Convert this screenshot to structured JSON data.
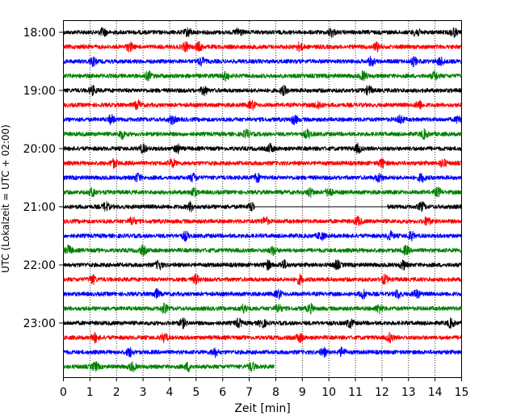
{
  "chart_data": {
    "type": "line",
    "xlabel": "Zeit  [min]",
    "ylabel": "UTC (Lokalzeit = UTC + 02:00)",
    "xlim": [
      0,
      15
    ],
    "x_ticks": [
      0,
      1,
      2,
      3,
      4,
      5,
      6,
      7,
      8,
      9,
      10,
      11,
      12,
      13,
      14,
      15
    ],
    "x_tick_labels": [
      "0",
      "1",
      "2",
      "3",
      "4",
      "5",
      "6",
      "7",
      "8",
      "9",
      "10",
      "11",
      "12",
      "13",
      "14",
      "15"
    ],
    "y_tick_labels": [
      "18:00",
      "19:00",
      "20:00",
      "21:00",
      "22:00",
      "23:00"
    ],
    "y_tick_rows": [
      0,
      4,
      8,
      12,
      16,
      20
    ],
    "x_grid": "dotted-vertical",
    "trace_colors": [
      "#000000",
      "#ff0000",
      "#0000ff",
      "#008000"
    ],
    "rows": [
      {
        "start_utc": "18:00",
        "color": "#000000",
        "x_start": 0,
        "x_end": 15,
        "bursts": [
          1.5,
          4.7,
          6.6,
          10.1,
          13.3,
          14.7
        ]
      },
      {
        "start_utc": "18:15",
        "color": "#ff0000",
        "x_start": 0,
        "x_end": 15,
        "bursts": [
          2.5,
          4.6,
          5.1,
          8.9,
          11.8
        ]
      },
      {
        "start_utc": "18:30",
        "color": "#0000ff",
        "x_start": 0,
        "x_end": 15,
        "bursts": [
          1.1,
          5.2,
          11.6,
          13.2,
          14.2
        ]
      },
      {
        "start_utc": "18:45",
        "color": "#008000",
        "x_start": 0,
        "x_end": 15,
        "bursts": [
          3.2,
          6.1,
          11.3,
          14.0
        ]
      },
      {
        "start_utc": "19:00",
        "color": "#000000",
        "x_start": 0,
        "x_end": 15,
        "bursts": [
          1.1,
          5.3,
          8.3,
          11.5
        ]
      },
      {
        "start_utc": "19:15",
        "color": "#ff0000",
        "x_start": 0,
        "x_end": 15,
        "bursts": [
          2.8,
          7.1,
          9.6,
          13.4
        ]
      },
      {
        "start_utc": "19:30",
        "color": "#0000ff",
        "x_start": 0,
        "x_end": 15,
        "bursts": [
          1.8,
          4.1,
          8.7,
          12.7,
          14.9
        ]
      },
      {
        "start_utc": "19:45",
        "color": "#008000",
        "x_start": 0,
        "x_end": 15,
        "bursts": [
          2.2,
          6.9,
          9.2,
          13.6
        ]
      },
      {
        "start_utc": "20:00",
        "color": "#000000",
        "x_start": 0,
        "x_end": 15,
        "bursts": [
          3.0,
          4.3,
          7.8,
          11.1
        ]
      },
      {
        "start_utc": "20:15",
        "color": "#ff0000",
        "x_start": 0,
        "x_end": 15,
        "bursts": [
          1.9,
          4.1,
          12.0,
          14.3
        ]
      },
      {
        "start_utc": "20:30",
        "color": "#0000ff",
        "x_start": 0,
        "x_end": 15,
        "bursts": [
          2.8,
          4.9,
          7.3,
          11.9,
          13.5
        ]
      },
      {
        "start_utc": "20:45",
        "color": "#008000",
        "x_start": 0,
        "x_end": 15,
        "bursts": [
          1.1,
          4.9,
          9.3,
          10.0,
          14.1
        ]
      },
      {
        "start_utc": "21:00",
        "color": "#000000",
        "x_start": 0,
        "x_end": 15,
        "gap": [
          7.2,
          12.2
        ],
        "bursts": [
          1.6,
          4.8,
          7.1,
          13.5
        ]
      },
      {
        "start_utc": "21:15",
        "color": "#ff0000",
        "x_start": 0,
        "x_end": 15,
        "bursts": [
          2.6,
          7.6,
          11.1,
          13.7
        ]
      },
      {
        "start_utc": "21:30",
        "color": "#0000ff",
        "x_start": 0,
        "x_end": 15,
        "bursts": [
          4.6,
          9.7,
          12.3,
          13.1
        ]
      },
      {
        "start_utc": "21:45",
        "color": "#008000",
        "x_start": 0,
        "x_end": 15,
        "bursts": [
          0.2,
          3.0,
          7.9,
          12.9
        ]
      },
      {
        "start_utc": "22:00",
        "color": "#000000",
        "x_start": 0,
        "x_end": 15,
        "bursts": [
          3.6,
          7.7,
          8.3,
          10.3,
          12.8
        ]
      },
      {
        "start_utc": "22:15",
        "color": "#ff0000",
        "x_start": 0,
        "x_end": 15,
        "bursts": [
          1.1,
          5.0,
          8.9,
          12.1
        ]
      },
      {
        "start_utc": "22:30",
        "color": "#0000ff",
        "x_start": 0,
        "x_end": 15,
        "bursts": [
          3.5,
          8.1,
          11.3,
          12.6,
          13.3
        ]
      },
      {
        "start_utc": "22:45",
        "color": "#008000",
        "x_start": 0,
        "x_end": 15,
        "bursts": [
          3.8,
          6.8,
          8.1,
          9.3,
          11.9
        ]
      },
      {
        "start_utc": "23:00",
        "color": "#000000",
        "x_start": 0,
        "x_end": 15,
        "bursts": [
          4.5,
          6.6,
          7.5,
          10.8,
          14.6
        ]
      },
      {
        "start_utc": "23:15",
        "color": "#ff0000",
        "x_start": 0,
        "x_end": 15,
        "bursts": [
          1.2,
          3.8,
          8.9,
          12.3
        ]
      },
      {
        "start_utc": "23:30",
        "color": "#0000ff",
        "x_start": 0,
        "x_end": 15,
        "bursts": [
          2.5,
          5.7,
          9.8,
          10.5
        ]
      },
      {
        "start_utc": "23:45",
        "color": "#008000",
        "x_start": 0,
        "x_end": 7.95,
        "bursts": [
          1.2,
          2.6,
          4.7,
          7.1
        ]
      }
    ]
  }
}
